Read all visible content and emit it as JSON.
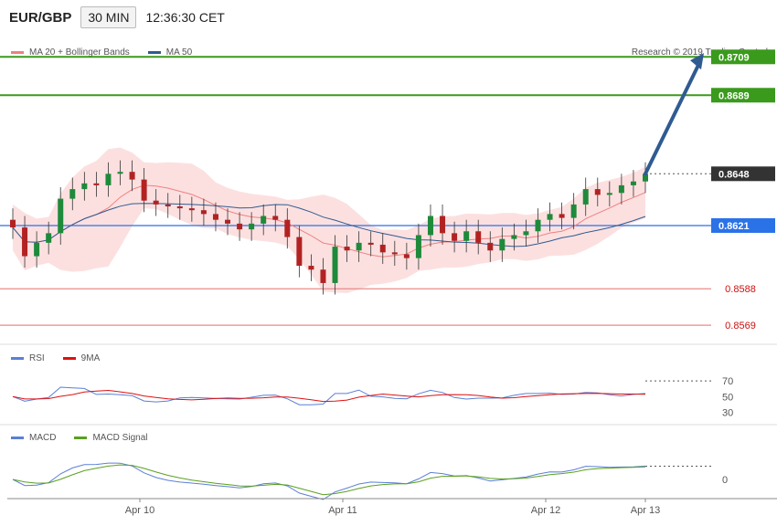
{
  "header": {
    "symbol": "EUR/GBP",
    "timeframe": "30 MIN",
    "time": "12:36:30 CET"
  },
  "main_legend": [
    {
      "label": "MA 20 + Bollinger Bands",
      "color": "#f08080"
    },
    {
      "label": "MA 50",
      "color": "#2f5b91"
    }
  ],
  "copyright": "Research © 2019 Trading Central",
  "levels": [
    {
      "label": "0.8709",
      "value": 0.8709,
      "kind": "target"
    },
    {
      "label": "0.8689",
      "value": 0.8689,
      "kind": "target"
    },
    {
      "label": "0.8648",
      "value": 0.8648,
      "kind": "current"
    },
    {
      "label": "0.8621",
      "value": 0.8621,
      "kind": "pivot"
    },
    {
      "label": "0.8588",
      "value": 0.8588,
      "kind": "support"
    },
    {
      "label": "0.8569",
      "value": 0.8569,
      "kind": "support"
    }
  ],
  "colors": {
    "target": "#3a9a1c",
    "current": "#333333",
    "pivot": "#2a72e8",
    "support": "#e88a8a",
    "up": "#1e8a3a",
    "down": "#b22222",
    "arrow": "#2f5b91"
  },
  "rsi": {
    "legend": [
      {
        "label": "RSI",
        "color": "#5b7fd6"
      },
      {
        "label": "9MA",
        "color": "#dd1111"
      }
    ],
    "ticks": [
      "70",
      "50",
      "30"
    ]
  },
  "macd": {
    "legend": [
      {
        "label": "MACD",
        "color": "#5b7fd6"
      },
      {
        "label": "MACD Signal",
        "color": "#5aa020"
      }
    ],
    "ticks": [
      "0"
    ]
  },
  "x_labels": [
    "Apr 10",
    "Apr 11",
    "Apr 12",
    "Apr 13"
  ],
  "chart_data": {
    "type": "candlestick",
    "symbol": "EUR/GBP",
    "interval": "30 MIN",
    "ylim": [
      0.856,
      0.8722
    ],
    "close_approx": [
      0.862,
      0.8605,
      0.8612,
      0.8617,
      0.8635,
      0.864,
      0.8643,
      0.8642,
      0.8648,
      0.8649,
      0.8645,
      0.8634,
      0.8632,
      0.8631,
      0.863,
      0.8629,
      0.8627,
      0.8624,
      0.8622,
      0.8619,
      0.8622,
      0.8626,
      0.8624,
      0.8615,
      0.86,
      0.8598,
      0.8591,
      0.861,
      0.8608,
      0.8612,
      0.8611,
      0.8607,
      0.8606,
      0.8604,
      0.8616,
      0.8626,
      0.8617,
      0.8613,
      0.8618,
      0.8612,
      0.8608,
      0.8614,
      0.8616,
      0.8618,
      0.8624,
      0.8627,
      0.8625,
      0.8632,
      0.864,
      0.8637,
      0.8638,
      0.8642,
      0.8644,
      0.8648
    ],
    "targets": [
      0.8689,
      0.8709
    ],
    "pivot": 0.8621,
    "supports": [
      0.8588,
      0.8569
    ],
    "current": 0.8648
  }
}
